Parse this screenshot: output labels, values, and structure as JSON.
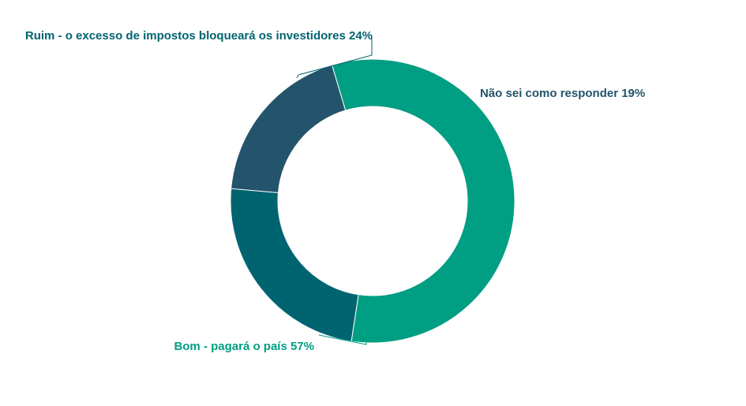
{
  "chart_data": {
    "type": "pie",
    "title": "",
    "categories": [
      "Não sei como responder",
      "Bom - pagará o país",
      "Ruim - o excesso de impostos bloqueará os investidores"
    ],
    "values": [
      19,
      57,
      24
    ],
    "unit": "%",
    "labels": [
      "Não sei como responder 19%",
      "Bom - pagará o país 57%",
      "Ruim - o excesso de impostos bloqueará os investidores 24%"
    ],
    "colors": [
      "#23546c",
      "#009e82",
      "#006470"
    ],
    "label_colors": [
      "#23546c",
      "#009e82",
      "#006470"
    ],
    "donut": true,
    "legend": "none"
  }
}
